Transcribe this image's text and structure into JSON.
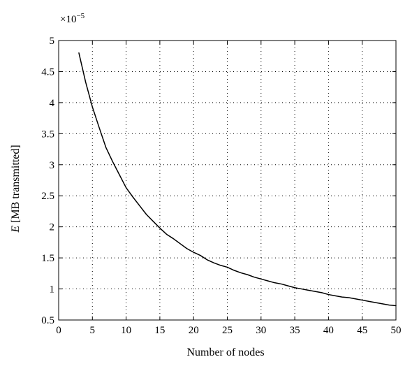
{
  "chart_data": {
    "type": "line",
    "title": "",
    "xlabel": "Number of nodes",
    "ylabel_italic": "E",
    "ylabel_rest": " [MB transmitted]",
    "y_multiplier_base": "×10",
    "y_multiplier_exponent": "−5",
    "xlim": [
      0,
      50
    ],
    "ylim": [
      0.5,
      5
    ],
    "xticks": [
      0,
      5,
      10,
      15,
      20,
      25,
      30,
      35,
      40,
      45,
      50
    ],
    "yticks": [
      0.5,
      1,
      1.5,
      2,
      2.5,
      3,
      3.5,
      4,
      4.5,
      5
    ],
    "xtick_labels": [
      "0",
      "5",
      "10",
      "15",
      "20",
      "25",
      "30",
      "35",
      "40",
      "45",
      "50"
    ],
    "ytick_labels": [
      "0.5",
      "1",
      "1.5",
      "2",
      "2.5",
      "3",
      "3.5",
      "4",
      "4.5",
      "5"
    ],
    "grid": true,
    "series": [
      {
        "x": [
          3,
          4,
          5,
          6,
          7,
          8,
          9,
          10,
          11,
          12,
          13,
          14,
          15,
          16,
          17,
          18,
          19,
          20,
          21,
          22,
          23,
          24,
          25,
          26,
          27,
          28,
          29,
          30,
          31,
          32,
          33,
          34,
          35,
          36,
          37,
          38,
          39,
          40,
          41,
          42,
          43,
          44,
          45,
          46,
          47,
          48,
          49,
          50
        ],
        "y": [
          4.8,
          4.33,
          3.93,
          3.6,
          3.28,
          3.05,
          2.84,
          2.63,
          2.48,
          2.34,
          2.2,
          2.09,
          1.98,
          1.88,
          1.81,
          1.73,
          1.65,
          1.59,
          1.54,
          1.47,
          1.42,
          1.38,
          1.35,
          1.3,
          1.26,
          1.23,
          1.19,
          1.16,
          1.13,
          1.1,
          1.08,
          1.05,
          1.02,
          1.0,
          0.98,
          0.96,
          0.94,
          0.91,
          0.89,
          0.87,
          0.86,
          0.84,
          0.82,
          0.8,
          0.78,
          0.76,
          0.74,
          0.73
        ]
      }
    ]
  }
}
